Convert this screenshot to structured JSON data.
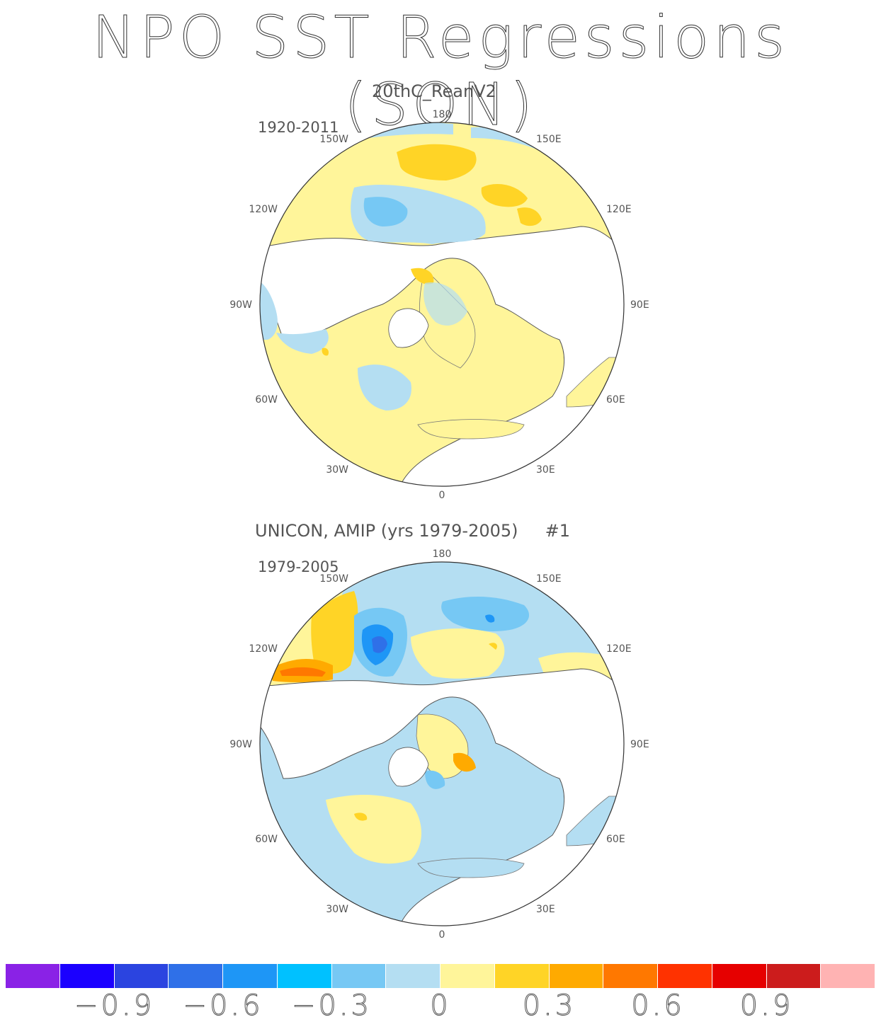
{
  "title": "NPO SST Regressions (SON)",
  "panels": [
    {
      "title": "20thC_ReanV2",
      "period": "1920-2011",
      "lon_labels": {
        "n": "180",
        "nne": "150E",
        "ene": "120E",
        "e": "90E",
        "ese": "60E",
        "sse": "30E",
        "s": "0",
        "ssw": "30W",
        "wsw": "60W",
        "w": "90W",
        "wnw": "120W",
        "nnw": "150W"
      }
    },
    {
      "title": "UNICON, AMIP (yrs 1979-2005)     #1",
      "period": "1979-2005",
      "lon_labels": {
        "n": "180",
        "nne": "150E",
        "ene": "120E",
        "e": "90E",
        "ese": "60E",
        "sse": "30E",
        "s": "0",
        "ssw": "30W",
        "wsw": "60W",
        "w": "90W",
        "wnw": "120W",
        "nnw": "150W"
      }
    }
  ],
  "colorbar": {
    "colors": [
      "#8a22e6",
      "#1b00ff",
      "#2b44e0",
      "#2f70e8",
      "#1e96f6",
      "#00c1ff",
      "#76c8f4",
      "#b4def2",
      "#fff59a",
      "#ffd426",
      "#ffaa00",
      "#ff7800",
      "#ff3200",
      "#e60000",
      "#cc1c1c",
      "#ffb3b3"
    ],
    "labels": [
      "-0.9",
      "-0.6",
      "-0.3",
      "0",
      "0.3",
      "0.6",
      "0.9"
    ]
  }
}
